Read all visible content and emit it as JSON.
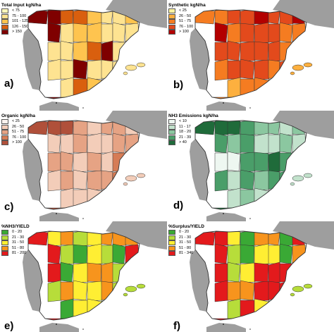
{
  "land_color": "#9e9e9e",
  "border_color": "#333333",
  "panels": [
    {
      "label": "a)",
      "legend_title": "Total Input kgN/ha",
      "classes": [
        {
          "text": "< 75",
          "color": "#fff7bc"
        },
        {
          "text": "75 - 100",
          "color": "#fee391"
        },
        {
          "text": "101 - 125",
          "color": "#fec44f"
        },
        {
          "text": "126 - 150",
          "color": "#d95f0e"
        },
        {
          "text": "> 150",
          "color": "#7f0000"
        }
      ]
    },
    {
      "label": "b)",
      "legend_title": "Synthetic kgN/ha",
      "classes": [
        {
          "text": "< 25",
          "color": "#fff3a0"
        },
        {
          "text": "26 - 50",
          "color": "#fdb03f"
        },
        {
          "text": "51 - 75",
          "color": "#f57c21"
        },
        {
          "text": "76 - 100",
          "color": "#e34a1c"
        },
        {
          "text": "> 100",
          "color": "#b30000"
        }
      ]
    },
    {
      "label": "c)",
      "legend_title": "Organic kgN/ha",
      "classes": [
        {
          "text": "< 25",
          "color": "#fbf3ef"
        },
        {
          "text": "26 - 50",
          "color": "#f3cdb9"
        },
        {
          "text": "51 - 75",
          "color": "#e6a384"
        },
        {
          "text": "76 - 100",
          "color": "#d67c56"
        },
        {
          "text": "> 100",
          "color": "#b0503a"
        }
      ]
    },
    {
      "label": "d)",
      "legend_title": "NH3 Emissions kgN/ha",
      "classes": [
        {
          "text": "< 10",
          "color": "#eef7f1"
        },
        {
          "text": "11 - 17",
          "color": "#c2e2cc"
        },
        {
          "text": "18 - 20",
          "color": "#8bc7a0"
        },
        {
          "text": "21 - 39",
          "color": "#4a9e69"
        },
        {
          "text": "> 40",
          "color": "#1f6b3a"
        }
      ]
    },
    {
      "label": "e)",
      "legend_title": "%NH3/YIELD",
      "classes": [
        {
          "text": "0 - 20",
          "color": "#3aa935"
        },
        {
          "text": "21 - 30",
          "color": "#b7dd3a"
        },
        {
          "text": "31 - 50",
          "color": "#ffee33"
        },
        {
          "text": "51 - 80",
          "color": "#f7941d"
        },
        {
          "text": "81 - 200",
          "color": "#e31a1c"
        }
      ]
    },
    {
      "label": "f)",
      "legend_title": "%Surplus/YIELD",
      "classes": [
        {
          "text": "0 - 20",
          "color": "#3aa935"
        },
        {
          "text": "21 - 30",
          "color": "#b7dd3a"
        },
        {
          "text": "31 - 50",
          "color": "#ffee33"
        },
        {
          "text": "51 - 80",
          "color": "#f7941d"
        },
        {
          "text": "81 - 346",
          "color": "#e31a1c"
        }
      ]
    }
  ],
  "region_classes": [
    [
      4,
      4,
      3,
      3,
      2,
      1,
      1,
      2,
      4,
      1,
      2,
      2,
      1,
      1,
      1,
      1,
      1,
      2,
      3,
      4,
      1,
      2,
      1,
      1,
      4,
      1,
      1,
      1,
      1,
      1,
      3,
      2,
      1
    ],
    [
      2,
      2,
      3,
      3,
      4,
      3,
      3,
      4,
      4,
      2,
      3,
      3,
      3,
      2,
      2,
      3,
      3,
      3,
      3,
      3,
      2,
      3,
      2,
      3,
      3,
      3,
      2,
      3,
      3,
      1,
      2,
      2,
      1
    ],
    [
      4,
      4,
      4,
      2,
      1,
      2,
      2,
      1,
      1,
      1,
      2,
      1,
      1,
      2,
      2,
      2,
      2,
      1,
      2,
      1,
      3,
      2,
      1,
      2,
      1,
      2,
      2,
      3,
      2,
      1,
      1,
      1,
      1
    ],
    [
      4,
      4,
      4,
      3,
      2,
      2,
      1,
      2,
      3,
      2,
      3,
      1,
      1,
      2,
      1,
      0,
      0,
      3,
      3,
      4,
      3,
      2,
      3,
      1,
      3,
      2,
      3,
      3,
      3,
      1,
      2,
      1,
      1
    ],
    [
      4,
      2,
      3,
      1,
      2,
      3,
      3,
      3,
      4,
      1,
      0,
      2,
      1,
      0,
      4,
      4,
      0,
      2,
      3,
      3,
      1,
      0,
      1,
      3,
      2,
      2,
      3,
      1,
      3,
      0,
      2,
      2,
      1
    ],
    [
      4,
      4,
      2,
      0,
      3,
      3,
      0,
      4,
      4,
      1,
      0,
      2,
      2,
      0,
      3,
      4,
      1,
      2,
      4,
      4,
      4,
      3,
      4,
      3,
      3,
      4,
      4,
      4,
      4,
      1,
      4,
      2,
      1
    ]
  ]
}
